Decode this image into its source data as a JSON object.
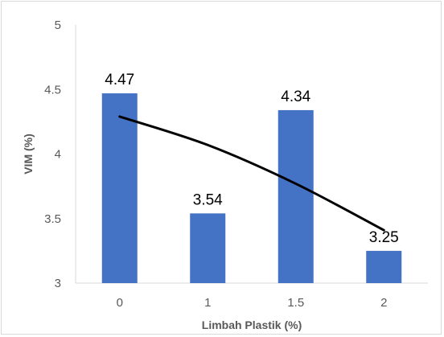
{
  "chart_data": {
    "type": "bar",
    "categories": [
      "0",
      "1",
      "1.5",
      "2"
    ],
    "values": [
      4.47,
      3.54,
      4.34,
      3.25
    ],
    "data_labels": [
      "4.47",
      "3.54",
      "4.34",
      "3.25"
    ],
    "title": "",
    "xlabel": "Limbah Plastik (%)",
    "ylabel": "VIM (%)",
    "ylim": [
      3,
      5
    ],
    "yticks": [
      "3",
      "3.5",
      "4",
      "4.5",
      "5"
    ],
    "grid": false,
    "legend": "none",
    "bar_color": "#4472c4",
    "trendline": {
      "type": "polynomial",
      "color": "#000000",
      "points": [
        4.29,
        4.07,
        3.77,
        3.41
      ]
    }
  }
}
